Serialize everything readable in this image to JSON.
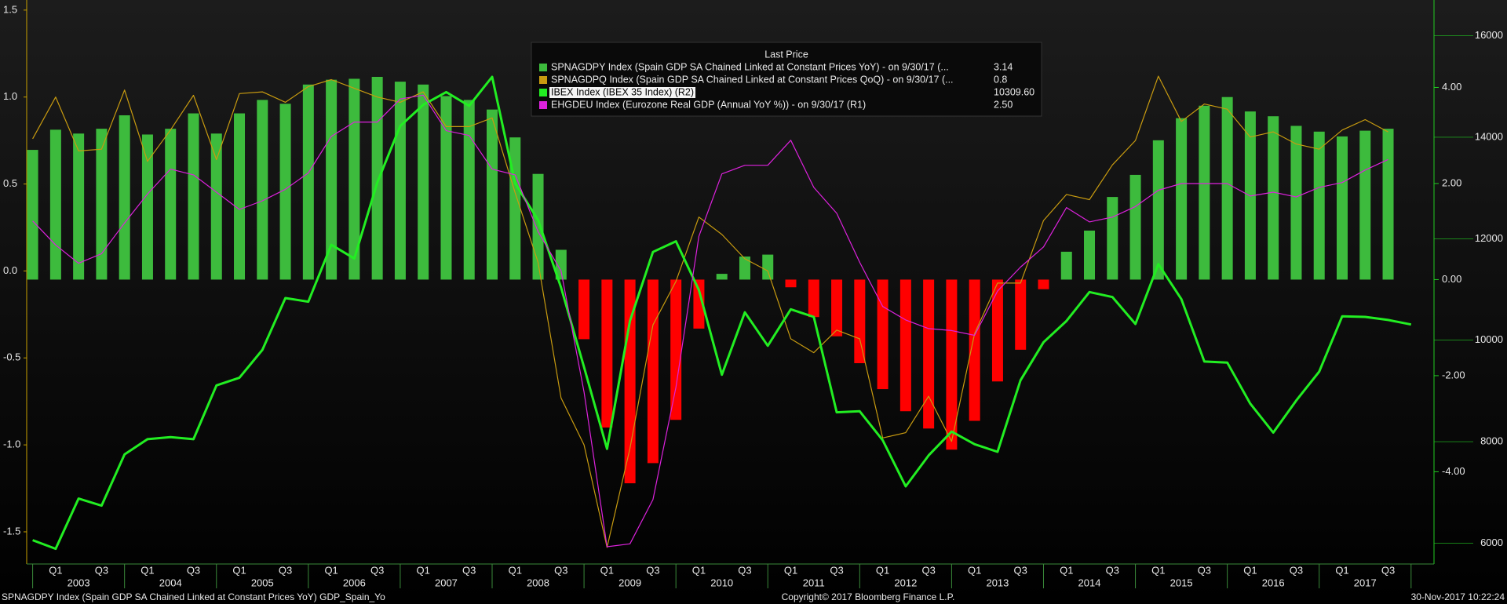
{
  "chart_data": {
    "type": "combo",
    "legend_title": "Last Price",
    "categories": [
      null,
      "Q1",
      null,
      "Q3",
      null,
      "Q1",
      null,
      "Q3",
      null,
      "Q1",
      null,
      "Q3",
      null,
      "Q1",
      null,
      "Q3",
      null,
      "Q1",
      null,
      "Q3",
      null,
      "Q1",
      null,
      "Q3",
      null,
      "Q1",
      null,
      "Q3",
      null,
      "Q1",
      null,
      "Q3",
      null,
      "Q1",
      null,
      "Q3",
      null,
      "Q1",
      null,
      "Q3",
      null,
      "Q1",
      null,
      "Q3",
      null,
      "Q1",
      null,
      "Q3",
      null,
      "Q1",
      null,
      "Q3",
      null,
      "Q1",
      null,
      "Q3",
      null,
      "Q1",
      null,
      "Q3",
      null
    ],
    "year_labels": [
      "2003",
      "2004",
      "2005",
      "2006",
      "2007",
      "2008",
      "2009",
      "2010",
      "2011",
      "2012",
      "2013",
      "2014",
      "2015",
      "2016",
      "2017"
    ],
    "ylim": [
      -1.685,
      1.558
    ],
    "yticks": [
      1.5,
      {
        "value": 1,
        "label": "1.0"
      },
      0.5,
      {
        "value": 0,
        "label": "0.0"
      },
      -0.5,
      {
        "value": -1,
        "label": "-1.0"
      },
      -1.5
    ],
    "y2lim": [
      -5.92,
      5.82
    ],
    "y2ticks": [
      {
        "value": 4,
        "label": "4.00"
      },
      {
        "value": 2,
        "label": "2.00"
      },
      {
        "value": 0,
        "label": "0.00"
      },
      {
        "value": -2,
        "label": "-2.00"
      },
      {
        "value": -4,
        "label": "-4.00"
      }
    ],
    "y3lim": [
      5590,
      16705
    ],
    "y3ticks": [
      16000,
      14000,
      12000,
      10000,
      8000,
      6000
    ],
    "series": [
      {
        "name": "SPNAGDPY Index (Spain GDP SA Chained Linked at Constant Prices YoY)  -  on 9/30/17  (...",
        "type": "bar",
        "axis": "y2",
        "color": "#3dbb3d",
        "negative_color": "#ff0000",
        "last_price": "3.14",
        "values": [
          2.7,
          3.12,
          3.04,
          3.14,
          3.42,
          3.02,
          3.14,
          3.46,
          3.04,
          3.46,
          3.74,
          3.66,
          4.06,
          4.16,
          4.18,
          4.22,
          4.12,
          4.06,
          3.82,
          3.74,
          3.54,
          2.96,
          2.2,
          0.62,
          -1.24,
          -3.08,
          -4.24,
          -3.82,
          -2.92,
          -1.02,
          0.12,
          0.48,
          0.52,
          -0.16,
          -0.78,
          -1.18,
          -1.74,
          -2.28,
          -2.74,
          -3.1,
          -3.54,
          -2.94,
          -2.12,
          -1.46,
          -0.2,
          0.58,
          1.02,
          1.72,
          2.18,
          2.9,
          3.36,
          3.62,
          3.8,
          3.5,
          3.4,
          3.2,
          3.08,
          2.98,
          3.1,
          3.14,
          null
        ]
      },
      {
        "name": "SPNAGDPQ Index (Spain GDP SA Chained Linked at Constant Prices QoQ)  -  on 9/30/17  (...",
        "type": "line",
        "axis": "y",
        "color": "#c89b10",
        "width": 1.2,
        "last_price": "0.8",
        "values": [
          0.76,
          1.0,
          0.69,
          0.7,
          1.04,
          0.63,
          0.81,
          1.01,
          0.64,
          1.02,
          1.03,
          0.97,
          1.06,
          1.1,
          1.05,
          1.0,
          0.97,
          1.03,
          0.83,
          0.83,
          0.88,
          0.45,
          0.05,
          -0.73,
          -1.0,
          -1.59,
          -1.02,
          -0.31,
          -0.06,
          0.31,
          0.21,
          0.07,
          0.0,
          -0.39,
          -0.47,
          -0.34,
          -0.39,
          -0.96,
          -0.93,
          -0.72,
          -0.98,
          -0.36,
          -0.07,
          -0.07,
          0.29,
          0.44,
          0.41,
          0.61,
          0.75,
          1.12,
          0.86,
          0.96,
          0.93,
          0.77,
          0.8,
          0.73,
          0.7,
          0.81,
          0.87,
          0.8,
          null
        ]
      },
      {
        "name": "IBEX Index (IBEX 35 Index)  (R2)",
        "type": "line",
        "axis": "y3",
        "color": "#22ee22",
        "width": 3,
        "highlight": true,
        "last_price": "10309.60",
        "values": [
          6060,
          5890,
          6880,
          6740,
          7750,
          8050,
          8090,
          8050,
          9110,
          9260,
          9810,
          10830,
          10760,
          11880,
          11610,
          13110,
          14220,
          14640,
          14890,
          14620,
          15190,
          13090,
          12370,
          11040,
          9470,
          7860,
          10380,
          11740,
          11950,
          10990,
          9320,
          10550,
          9890,
          10610,
          10460,
          8580,
          8600,
          8030,
          7120,
          7730,
          8200,
          7950,
          7800,
          9210,
          9960,
          10380,
          10950,
          10850,
          10320,
          11500,
          10810,
          9580,
          9560,
          8750,
          8180,
          8810,
          9380,
          10470,
          10460,
          10400,
          10309.6
        ]
      },
      {
        "name": "EHGDEU Index (Eurozone Real GDP (Annual YoY %))  -  on 9/30/17  (R1)",
        "type": "line",
        "axis": "y2",
        "color": "#dd22dd",
        "width": 1.2,
        "last_price": "2.50",
        "values": [
          1.22,
          0.72,
          0.34,
          0.54,
          1.18,
          1.78,
          2.3,
          2.18,
          1.82,
          1.46,
          1.64,
          1.88,
          2.22,
          2.98,
          3.28,
          3.28,
          3.76,
          3.84,
          3.1,
          3.0,
          2.3,
          2.18,
          1.0,
          0.18,
          -2.34,
          -5.56,
          -5.5,
          -4.58,
          -2.24,
          0.9,
          2.2,
          2.38,
          2.38,
          2.9,
          1.92,
          1.38,
          0.36,
          -0.56,
          -0.84,
          -1.02,
          -1.06,
          -1.16,
          -0.24,
          0.26,
          0.68,
          1.5,
          1.2,
          1.3,
          1.52,
          1.86,
          2.0,
          2.0,
          2.0,
          1.74,
          1.82,
          1.72,
          1.92,
          2.02,
          2.28,
          2.5,
          null
        ]
      }
    ],
    "footer": {
      "left": "SPNAGDPY Index (Spain GDP SA Chained Linked at Constant Prices YoY) GDP_Spain_Yo",
      "center": "Copyright© 2017 Bloomberg Finance L.P.",
      "right": "30-Nov-2017 10:22:24"
    }
  }
}
